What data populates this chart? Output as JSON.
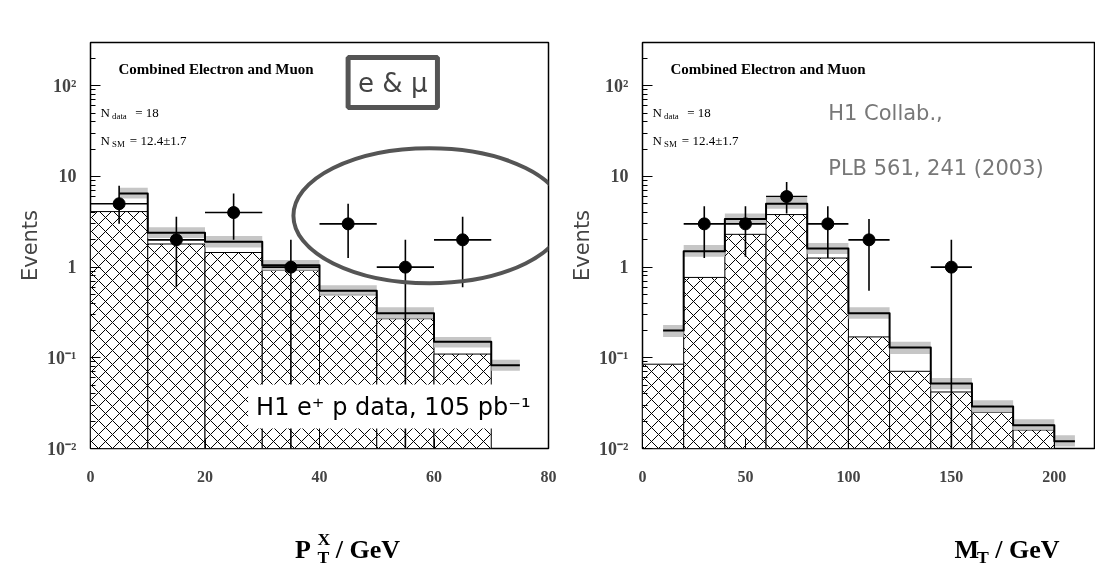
{
  "chart_data": [
    {
      "type": "histogram",
      "title": "Combined Electron and Muon",
      "xlabel": "P$_{T}$$^{X}$ / GeV",
      "ylabel": "Events",
      "log": "y",
      "bins": [
        0,
        10,
        20,
        30,
        40,
        50,
        60,
        70,
        80
      ],
      "xlim": [
        0,
        80
      ],
      "xticks": [
        0,
        20,
        40,
        60,
        80
      ],
      "ylim": [
        0.01,
        300
      ],
      "yticks": [
        {
          "value": 0.01,
          "label": "10⁻²"
        },
        {
          "value": 0.1,
          "label": "10⁻¹"
        },
        1,
        10,
        {
          "value": 100,
          "label": "10²"
        }
      ],
      "series": [
        {
          "type": "histogram",
          "color": "#000000",
          "values": [
            4.1,
            1.8,
            1.45,
            0.92,
            0.5,
            0.27,
            0.11,
            null
          ]
        },
        {
          "type": "step",
          "color": "#000000",
          "x": [
            5,
            15,
            25,
            35,
            45,
            55,
            65,
            75
          ],
          "values": [
            6.5,
            2.4,
            1.9,
            1.05,
            0.55,
            0.31,
            0.15,
            0.083
          ],
          "lower": [
            5.7,
            2.1,
            1.65,
            0.91,
            0.48,
            0.27,
            0.13,
            0.072
          ],
          "upper": [
            7.5,
            2.75,
            2.2,
            1.2,
            0.63,
            0.36,
            0.17,
            0.095
          ]
        },
        {
          "type": "scatter",
          "marker": "circle",
          "color": "#000000",
          "x": [
            5,
            15,
            25,
            35,
            45,
            55,
            65
          ],
          "values": [
            5,
            2,
            4,
            1,
            3,
            1,
            2
          ],
          "errors": [
            [
              3.0,
              7.9
            ],
            [
              0.6,
              3.6
            ],
            [
              2.0,
              6.5
            ],
            [
              0.01,
              2.0
            ],
            [
              1.26,
              5.0
            ],
            [
              0.01,
              2.0
            ],
            [
              0.6,
              3.6
            ]
          ],
          "xerrors": [
            5,
            5,
            5,
            5,
            5,
            5,
            5
          ]
        }
      ],
      "annotations": [
        "N$_{data}$ = 18",
        "N$_{SM}$ = 12.4±1.7",
        "e & μ",
        "H1 e⁺ p data, 105 pb⁻¹"
      ]
    },
    {
      "type": "histogram",
      "title": "Combined Electron and Muon",
      "xlabel": "M$_{T}$ / GeV",
      "ylabel": "Events",
      "log": "y",
      "bins": [
        0,
        20,
        40,
        60,
        80,
        100,
        120,
        140,
        160,
        180,
        200,
        220
      ],
      "xlim": [
        0,
        220
      ],
      "xticks": [
        0,
        50,
        100,
        150,
        200
      ],
      "ylim": [
        0.01,
        300
      ],
      "yticks": [
        {
          "value": 0.01,
          "label": "10⁻²"
        },
        {
          "value": 0.1,
          "label": "10⁻¹"
        },
        1,
        10,
        {
          "value": 100,
          "label": "10²"
        }
      ],
      "series": [
        {
          "type": "histogram",
          "color": "#000000",
          "values": [
            0.085,
            0.77,
            2.3,
            3.8,
            1.26,
            0.17,
            0.071,
            0.042,
            0.025,
            0.016,
            null
          ]
        },
        {
          "type": "step",
          "color": "#000000",
          "x": [
            10,
            30,
            50,
            70,
            90,
            110,
            130,
            150,
            170,
            190,
            210
          ],
          "values": [
            0.2,
            1.5,
            3.4,
            5.0,
            1.6,
            0.31,
            0.13,
            0.052,
            0.029,
            0.018,
            0.012
          ],
          "lower": [
            0.17,
            1.3,
            3.0,
            4.4,
            1.4,
            0.27,
            0.11,
            0.045,
            0.025,
            0.016,
            0.0105
          ],
          "upper": [
            0.23,
            1.75,
            3.9,
            5.8,
            1.85,
            0.36,
            0.15,
            0.06,
            0.034,
            0.021,
            0.014
          ]
        },
        {
          "type": "scatter",
          "marker": "circle",
          "color": "#000000",
          "x": [
            30,
            50,
            70,
            90,
            110,
            150
          ],
          "values": [
            3,
            3,
            6,
            3,
            2,
            1
          ],
          "errors": [
            [
              1.26,
              4.7
            ],
            [
              1.3,
              4.7
            ],
            [
              3.9,
              8.7
            ],
            [
              1.26,
              4.7
            ],
            [
              0.55,
              3.4
            ],
            [
              0.01,
              2.0
            ]
          ],
          "xerrors": [
            10,
            10,
            10,
            10,
            10,
            10
          ]
        }
      ],
      "annotations": [
        "N$_{data}$ = 18",
        "N$_{SM}$ = 12.4±1.7",
        "H1 Collab.,",
        "PLB 561, 241 (2003)"
      ]
    }
  ]
}
